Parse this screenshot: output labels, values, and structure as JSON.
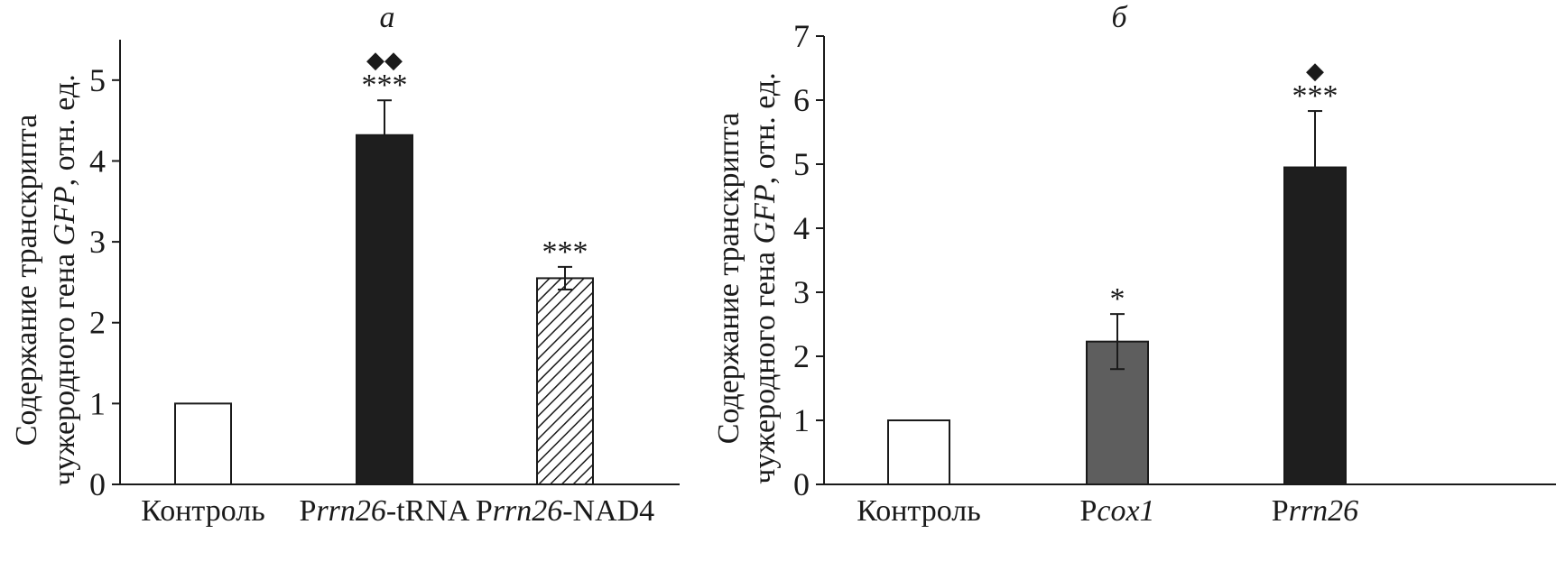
{
  "chart_data": [
    {
      "type": "bar",
      "title": "а",
      "ylabel_line1": "Содержание транскрипта",
      "ylabel_line2_prefix": "чужеродного гена ",
      "ylabel_line2_gene": "GFP",
      "ylabel_line2_suffix": ", отн. ед.",
      "ylim": [
        0,
        5.5
      ],
      "yticks": [
        0,
        1,
        2,
        3,
        4,
        5
      ],
      "grid": false,
      "bars": [
        {
          "label": [
            {
              "t": "Контроль",
              "italic": false
            }
          ],
          "value": 1.0,
          "error": 0,
          "fill": "white",
          "significance": "",
          "extra_marker": ""
        },
        {
          "label": [
            {
              "t": "P",
              "italic": false
            },
            {
              "t": "rrn26",
              "italic": true
            },
            {
              "t": "-tRNA",
              "italic": false
            }
          ],
          "value": 4.32,
          "error": 0.43,
          "fill": "black",
          "significance": "***",
          "extra_marker": "◆◆"
        },
        {
          "label": [
            {
              "t": "P",
              "italic": false
            },
            {
              "t": "rrn26",
              "italic": true
            },
            {
              "t": "-NAD4",
              "italic": false
            }
          ],
          "value": 2.55,
          "error": 0.14,
          "fill": "hatch",
          "significance": "***",
          "extra_marker": ""
        }
      ]
    },
    {
      "type": "bar",
      "title": "б",
      "ylabel_line1": "Содержание транскрипта",
      "ylabel_line2_prefix": "чужеродного гена ",
      "ylabel_line2_gene": "GFP",
      "ylabel_line2_suffix": ", отн. ед.",
      "ylim": [
        0,
        7
      ],
      "yticks": [
        0,
        1,
        2,
        3,
        4,
        5,
        6,
        7
      ],
      "grid": false,
      "bars": [
        {
          "label": [
            {
              "t": "Контроль",
              "italic": false
            }
          ],
          "value": 1.0,
          "error": 0,
          "fill": "white",
          "significance": "",
          "extra_marker": ""
        },
        {
          "label": [
            {
              "t": "P",
              "italic": false
            },
            {
              "t": "cox1",
              "italic": true
            }
          ],
          "value": 2.23,
          "error": 0.43,
          "fill": "gray",
          "significance": "*",
          "extra_marker": ""
        },
        {
          "label": [
            {
              "t": "P",
              "italic": false
            },
            {
              "t": "rrn26",
              "italic": true
            }
          ],
          "value": 4.95,
          "error": 0.88,
          "fill": "black",
          "significance": "***",
          "extra_marker": "◆"
        }
      ]
    }
  ],
  "colors": {
    "black_bar": "#1e1e1e",
    "gray_bar": "#5e5e5e",
    "axis": "#1a1a1a"
  }
}
